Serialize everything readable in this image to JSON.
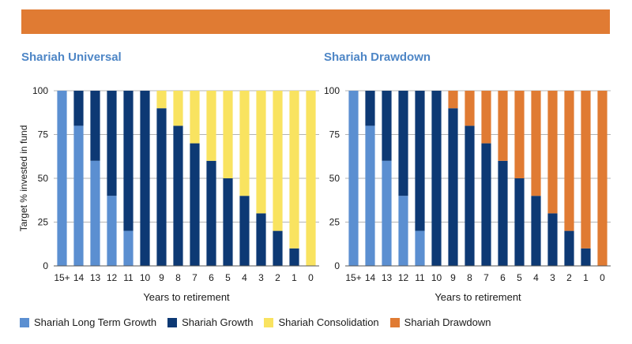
{
  "colors": {
    "banner": "#e07b33",
    "title": "#4e86c6",
    "long_term_growth": "#5b8fd1",
    "growth": "#0d3974",
    "consolidation": "#f9e360",
    "drawdown": "#e07b33",
    "grid": "#b4b4b4",
    "axis": "#555555"
  },
  "legend": [
    {
      "label": "Shariah Long Term Growth",
      "color": "#5b8fd1"
    },
    {
      "label": "Shariah Growth",
      "color": "#0d3974"
    },
    {
      "label": "Shariah Consolidation",
      "color": "#f9e360"
    },
    {
      "label": "Shariah Drawdown",
      "color": "#e07b33"
    }
  ],
  "chart_data": [
    {
      "type": "bar",
      "stacked": true,
      "title": "Shariah Universal",
      "xlabel": "Years to retirement",
      "ylabel": "Target % invested in fund",
      "ylim": [
        0,
        100
      ],
      "yticks": [
        0,
        25,
        50,
        75,
        100
      ],
      "grid": true,
      "categories": [
        "15+",
        "14",
        "13",
        "12",
        "11",
        "10",
        "9",
        "8",
        "7",
        "6",
        "5",
        "4",
        "3",
        "2",
        "1",
        "0"
      ],
      "series": [
        {
          "name": "Shariah Long Term Growth",
          "color": "#5b8fd1",
          "values": [
            100,
            80,
            60,
            40,
            20,
            0,
            0,
            0,
            0,
            0,
            0,
            0,
            0,
            0,
            0,
            0
          ]
        },
        {
          "name": "Shariah Growth",
          "color": "#0d3974",
          "values": [
            0,
            20,
            40,
            60,
            80,
            100,
            90,
            80,
            70,
            60,
            50,
            40,
            30,
            20,
            10,
            0
          ]
        },
        {
          "name": "Shariah Consolidation",
          "color": "#f9e360",
          "values": [
            0,
            0,
            0,
            0,
            0,
            0,
            10,
            20,
            30,
            40,
            50,
            60,
            70,
            80,
            90,
            100
          ]
        }
      ]
    },
    {
      "type": "bar",
      "stacked": true,
      "title": "Shariah Drawdown",
      "xlabel": "Years to retirement",
      "ylabel": "",
      "ylim": [
        0,
        100
      ],
      "yticks": [
        0,
        25,
        50,
        75,
        100
      ],
      "grid": true,
      "categories": [
        "15+",
        "14",
        "13",
        "12",
        "11",
        "10",
        "9",
        "8",
        "7",
        "6",
        "5",
        "4",
        "3",
        "2",
        "1",
        "0"
      ],
      "series": [
        {
          "name": "Shariah Long Term Growth",
          "color": "#5b8fd1",
          "values": [
            100,
            80,
            60,
            40,
            20,
            0,
            0,
            0,
            0,
            0,
            0,
            0,
            0,
            0,
            0,
            0
          ]
        },
        {
          "name": "Shariah Growth",
          "color": "#0d3974",
          "values": [
            0,
            20,
            40,
            60,
            80,
            100,
            90,
            80,
            70,
            60,
            50,
            40,
            30,
            20,
            10,
            0
          ]
        },
        {
          "name": "Shariah Drawdown",
          "color": "#e07b33",
          "values": [
            0,
            0,
            0,
            0,
            0,
            0,
            10,
            20,
            30,
            40,
            50,
            60,
            70,
            80,
            90,
            100
          ]
        }
      ]
    }
  ]
}
